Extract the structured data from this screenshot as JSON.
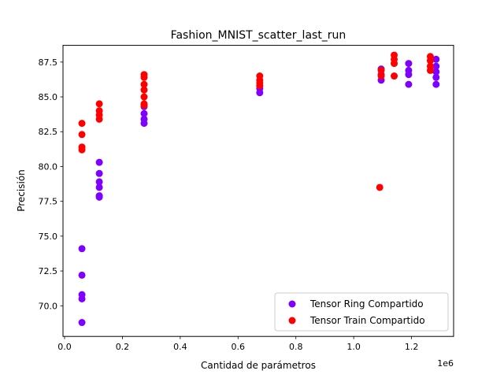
{
  "chart_data": {
    "type": "scatter",
    "title": "Fashion_MNIST_scatter_last_run",
    "xlabel": "Cantidad de parámetros",
    "ylabel": "Precisión",
    "x_offset_label": "1e6",
    "xlim": [
      -0.0055,
      1.3455
    ],
    "ylim": [
      67.8,
      88.7
    ],
    "x_ticks": [
      0.0,
      0.2,
      0.4,
      0.6,
      0.8,
      1.0,
      1.2
    ],
    "x_tick_labels": [
      "0.0",
      "0.2",
      "0.4",
      "0.6",
      "0.8",
      "1.0",
      "1.2"
    ],
    "y_ticks": [
      70.0,
      72.5,
      75.0,
      77.5,
      80.0,
      82.5,
      85.0,
      87.5
    ],
    "y_tick_labels": [
      "70.0",
      "72.5",
      "75.0",
      "77.5",
      "80.0",
      "82.5",
      "85.0",
      "87.5"
    ],
    "grid": false,
    "legend_position": "lower-right",
    "series": [
      {
        "name": "Tensor Ring Compartido",
        "color": "#8000ff",
        "points": [
          [
            0.06,
            74.1
          ],
          [
            0.06,
            72.2
          ],
          [
            0.06,
            70.8
          ],
          [
            0.06,
            70.5
          ],
          [
            0.06,
            68.8
          ],
          [
            0.12,
            80.3
          ],
          [
            0.12,
            79.5
          ],
          [
            0.12,
            78.9
          ],
          [
            0.12,
            78.5
          ],
          [
            0.12,
            77.9
          ],
          [
            0.12,
            77.8
          ],
          [
            0.275,
            84.3
          ],
          [
            0.275,
            83.8
          ],
          [
            0.275,
            83.4
          ],
          [
            0.275,
            83.1
          ],
          [
            0.675,
            85.8
          ],
          [
            0.675,
            85.6
          ],
          [
            0.675,
            85.3
          ],
          [
            1.095,
            87.0
          ],
          [
            1.095,
            86.6
          ],
          [
            1.095,
            86.2
          ],
          [
            1.19,
            87.4
          ],
          [
            1.19,
            86.9
          ],
          [
            1.19,
            86.6
          ],
          [
            1.19,
            85.9
          ],
          [
            1.285,
            87.7
          ],
          [
            1.285,
            87.2
          ],
          [
            1.285,
            86.8
          ],
          [
            1.285,
            86.4
          ],
          [
            1.285,
            85.9
          ]
        ]
      },
      {
        "name": "Tensor Train Compartido",
        "color": "#ff0000",
        "points": [
          [
            0.06,
            83.1
          ],
          [
            0.06,
            82.3
          ],
          [
            0.06,
            81.4
          ],
          [
            0.06,
            81.2
          ],
          [
            0.12,
            84.5
          ],
          [
            0.12,
            84.0
          ],
          [
            0.12,
            83.7
          ],
          [
            0.12,
            83.4
          ],
          [
            0.275,
            86.6
          ],
          [
            0.275,
            86.4
          ],
          [
            0.275,
            85.9
          ],
          [
            0.275,
            85.5
          ],
          [
            0.275,
            85.0
          ],
          [
            0.275,
            84.5
          ],
          [
            0.275,
            84.4
          ],
          [
            0.675,
            86.5
          ],
          [
            0.675,
            86.2
          ],
          [
            0.675,
            86.0
          ],
          [
            0.675,
            85.8
          ],
          [
            1.09,
            78.5
          ],
          [
            1.095,
            86.9
          ],
          [
            1.095,
            86.5
          ],
          [
            1.14,
            88.0
          ],
          [
            1.14,
            87.7
          ],
          [
            1.14,
            87.4
          ],
          [
            1.14,
            86.5
          ],
          [
            1.265,
            87.9
          ],
          [
            1.265,
            87.6
          ],
          [
            1.265,
            87.2
          ],
          [
            1.265,
            86.9
          ]
        ]
      }
    ]
  }
}
